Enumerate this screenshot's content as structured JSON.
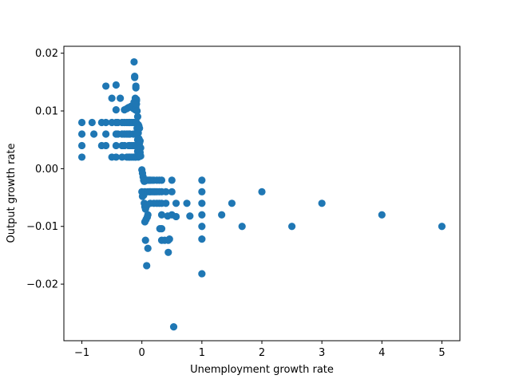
{
  "chart_data": {
    "type": "scatter",
    "title": "",
    "xlabel": "Unemployment growth rate",
    "ylabel": "Output growth rate",
    "xlim": [
      -1.3,
      5.3
    ],
    "ylim": [
      -0.0298,
      0.0212
    ],
    "xticks": [
      -1,
      0,
      1,
      2,
      3,
      4,
      5
    ],
    "xtick_labels": [
      "−1",
      "0",
      "1",
      "2",
      "3",
      "4",
      "5"
    ],
    "yticks": [
      -0.02,
      -0.01,
      0.0,
      0.01,
      0.02
    ],
    "ytick_labels": [
      "−0.02",
      "−0.01",
      "0.00",
      "0.01",
      "0.02"
    ],
    "grid": false,
    "marker_color": "#1f77b4",
    "points": [
      [
        -1,
        0.008
      ],
      [
        -1,
        0.006
      ],
      [
        -1,
        0.004
      ],
      [
        -1,
        0.002
      ],
      [
        -0.83,
        0.008
      ],
      [
        -0.8,
        0.006
      ],
      [
        -0.67,
        0.008
      ],
      [
        -0.67,
        0.004
      ],
      [
        -0.6,
        0.0143
      ],
      [
        -0.6,
        0.008
      ],
      [
        -0.6,
        0.006
      ],
      [
        -0.6,
        0.004
      ],
      [
        -0.5,
        0.0122
      ],
      [
        -0.5,
        0.008
      ],
      [
        -0.5,
        0.002
      ],
      [
        -0.43,
        0.0145
      ],
      [
        -0.43,
        0.0102
      ],
      [
        -0.43,
        0.008
      ],
      [
        -0.43,
        0.006
      ],
      [
        -0.43,
        0.004
      ],
      [
        -0.43,
        0.002
      ],
      [
        -0.4,
        0.008
      ],
      [
        -0.4,
        0.006
      ],
      [
        -0.36,
        0.0122
      ],
      [
        -0.33,
        0.008
      ],
      [
        -0.33,
        0.006
      ],
      [
        -0.33,
        0.004
      ],
      [
        -0.33,
        0.002
      ],
      [
        -0.29,
        0.0102
      ],
      [
        -0.29,
        0.008
      ],
      [
        -0.29,
        0.006
      ],
      [
        -0.29,
        0.004
      ],
      [
        -0.25,
        0.0104
      ],
      [
        -0.25,
        0.008
      ],
      [
        -0.25,
        0.006
      ],
      [
        -0.25,
        0.002
      ],
      [
        -0.22,
        0.0106
      ],
      [
        -0.22,
        0.008
      ],
      [
        -0.22,
        0.006
      ],
      [
        -0.22,
        0.004
      ],
      [
        -0.22,
        0.002
      ],
      [
        -0.2,
        0.008
      ],
      [
        -0.2,
        0.006
      ],
      [
        -0.2,
        0.004
      ],
      [
        -0.2,
        0.002
      ],
      [
        -0.18,
        0.0108
      ],
      [
        -0.17,
        0.008
      ],
      [
        -0.17,
        0.004
      ],
      [
        -0.17,
        0.002
      ],
      [
        -0.14,
        0.0104
      ],
      [
        -0.14,
        0.008
      ],
      [
        -0.14,
        0.006
      ],
      [
        -0.14,
        0.004
      ],
      [
        -0.14,
        0.002
      ],
      [
        -0.13,
        0.0115
      ],
      [
        -0.13,
        0.0185
      ],
      [
        -0.12,
        0.0158
      ],
      [
        -0.12,
        0.016
      ],
      [
        -0.11,
        0.0122
      ],
      [
        -0.11,
        0.0102
      ],
      [
        -0.11,
        0.008
      ],
      [
        -0.11,
        0.006
      ],
      [
        -0.11,
        0.004
      ],
      [
        -0.11,
        0.002
      ],
      [
        -0.1,
        0.0143
      ],
      [
        -0.1,
        0.014
      ],
      [
        -0.1,
        0.0112
      ],
      [
        -0.1,
        0.0107
      ],
      [
        -0.1,
        0.008
      ],
      [
        -0.1,
        0.006
      ],
      [
        -0.1,
        0.004
      ],
      [
        -0.1,
        0.002
      ],
      [
        -0.09,
        0.012
      ],
      [
        -0.09,
        0.0118
      ],
      [
        -0.09,
        0.0112
      ],
      [
        -0.09,
        0.008
      ],
      [
        -0.08,
        0.01
      ],
      [
        -0.08,
        0.007
      ],
      [
        -0.08,
        0.006
      ],
      [
        -0.08,
        0.004
      ],
      [
        -0.08,
        0.0022
      ],
      [
        -0.07,
        0.009
      ],
      [
        -0.07,
        0.0068
      ],
      [
        -0.07,
        0.005
      ],
      [
        -0.07,
        0.003
      ],
      [
        -0.06,
        0.0076
      ],
      [
        -0.06,
        0.0062
      ],
      [
        -0.06,
        0.0042
      ],
      [
        -0.06,
        0.002
      ],
      [
        -0.05,
        0.0074
      ],
      [
        -0.05,
        0.0052
      ],
      [
        -0.05,
        0.0032
      ],
      [
        -0.05,
        0.0024
      ],
      [
        -0.04,
        0.007
      ],
      [
        -0.04,
        0.0044
      ],
      [
        -0.04,
        0.0026
      ],
      [
        -0.03,
        0.0048
      ],
      [
        -0.03,
        0.0028
      ],
      [
        -0.02,
        0.0036
      ],
      [
        -0.02,
        0.0022
      ],
      [
        0,
        -0.0002
      ],
      [
        0.01,
        -0.0008
      ],
      [
        0.02,
        -0.0014
      ],
      [
        0.03,
        -0.002
      ],
      [
        0.04,
        -0.0022
      ],
      [
        0,
        -0.004
      ],
      [
        0.01,
        -0.0048
      ],
      [
        0.02,
        -0.0044
      ],
      [
        0.03,
        -0.0046
      ],
      [
        0.05,
        -0.004
      ],
      [
        0.04,
        -0.006
      ],
      [
        0.05,
        -0.0066
      ],
      [
        0.06,
        -0.007
      ],
      [
        0.07,
        -0.0066
      ],
      [
        0.08,
        -0.0064
      ],
      [
        0.05,
        -0.0092
      ],
      [
        0.07,
        -0.0088
      ],
      [
        0.09,
        -0.0084
      ],
      [
        0.1,
        -0.008
      ],
      [
        0.06,
        -0.0124
      ],
      [
        0.08,
        -0.0168
      ],
      [
        0.1,
        -0.0138
      ],
      [
        0.05,
        -0.002
      ],
      [
        0.07,
        -0.002
      ],
      [
        0.09,
        -0.002
      ],
      [
        0.11,
        -0.002
      ],
      [
        0.13,
        -0.002
      ],
      [
        0.14,
        -0.002
      ],
      [
        0.17,
        -0.002
      ],
      [
        0.2,
        -0.002
      ],
      [
        0.25,
        -0.002
      ],
      [
        0.29,
        -0.002
      ],
      [
        0.33,
        -0.002
      ],
      [
        0.5,
        -0.002
      ],
      [
        0.1,
        -0.004
      ],
      [
        0.13,
        -0.004
      ],
      [
        0.14,
        -0.004
      ],
      [
        0.17,
        -0.004
      ],
      [
        0.2,
        -0.004
      ],
      [
        0.22,
        -0.004
      ],
      [
        0.25,
        -0.004
      ],
      [
        0.29,
        -0.004
      ],
      [
        0.33,
        -0.004
      ],
      [
        0.4,
        -0.004
      ],
      [
        0.5,
        -0.004
      ],
      [
        0.14,
        -0.006
      ],
      [
        0.2,
        -0.006
      ],
      [
        0.25,
        -0.006
      ],
      [
        0.29,
        -0.006
      ],
      [
        0.33,
        -0.006
      ],
      [
        0.4,
        -0.006
      ],
      [
        0.33,
        -0.008
      ],
      [
        0.43,
        -0.0082
      ],
      [
        0.5,
        -0.008
      ],
      [
        0.3,
        -0.0104
      ],
      [
        0.33,
        -0.0104
      ],
      [
        0.33,
        -0.0124
      ],
      [
        0.38,
        -0.0124
      ],
      [
        0.44,
        -0.0124
      ],
      [
        0.46,
        -0.0122
      ],
      [
        0.44,
        -0.0145
      ],
      [
        0.57,
        -0.006
      ],
      [
        0.57,
        -0.0083
      ],
      [
        0.75,
        -0.006
      ],
      [
        0.8,
        -0.0082
      ],
      [
        0.53,
        -0.0274
      ],
      [
        1,
        -0.002
      ],
      [
        1,
        -0.004
      ],
      [
        1,
        -0.006
      ],
      [
        1,
        -0.008
      ],
      [
        1,
        -0.01
      ],
      [
        1,
        -0.0122
      ],
      [
        1,
        -0.0182
      ],
      [
        1.33,
        -0.008
      ],
      [
        1.5,
        -0.006
      ],
      [
        1.67,
        -0.01
      ],
      [
        2,
        -0.004
      ],
      [
        2.5,
        -0.01
      ],
      [
        3,
        -0.006
      ],
      [
        4,
        -0.008
      ],
      [
        5,
        -0.01
      ]
    ]
  }
}
